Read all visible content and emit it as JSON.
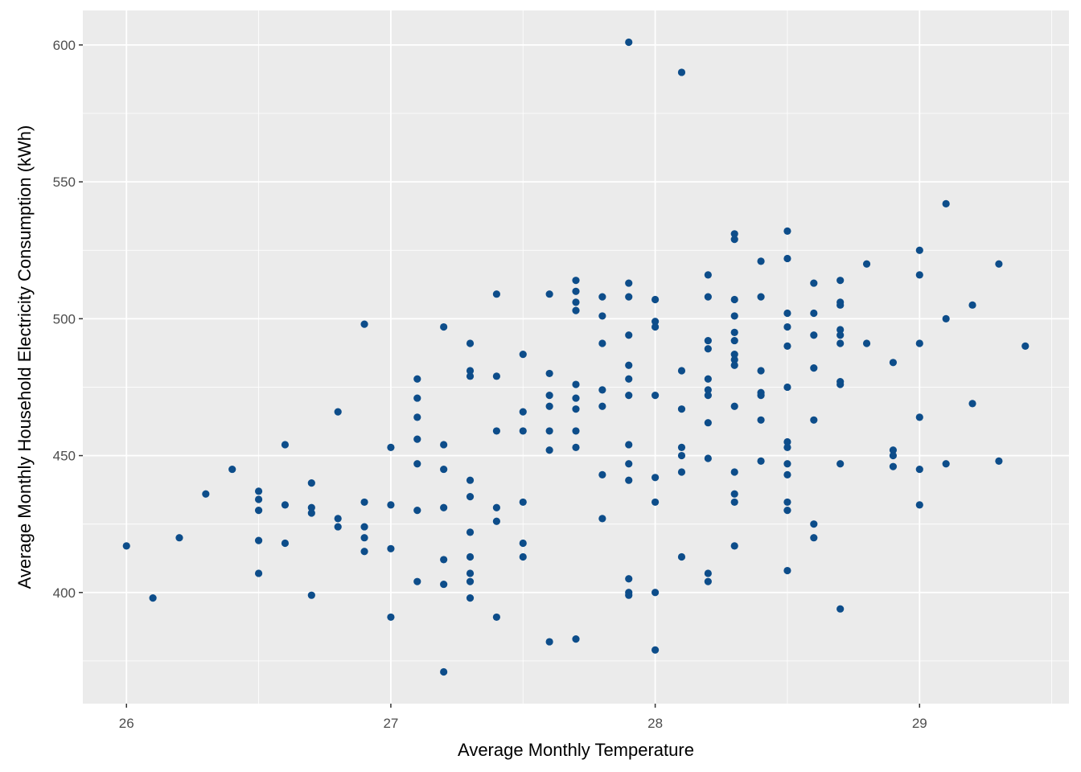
{
  "chart_data": {
    "type": "scatter",
    "title": "",
    "xlabel": "Average Monthly Temperature",
    "ylabel": "Average Monthly Household Electricity Consumption (kWh)",
    "xlim": [
      25.835,
      29.565
    ],
    "ylim": [
      359.4,
      612.6
    ],
    "x_ticks": [
      26,
      27,
      28,
      29
    ],
    "x_tick_labels": [
      "26",
      "27",
      "28",
      "29"
    ],
    "y_ticks": [
      400,
      450,
      500,
      550,
      600
    ],
    "y_tick_labels": [
      "400",
      "450",
      "500",
      "550",
      "600"
    ],
    "grid": true,
    "legend": "none",
    "colors": {
      "panel": "#ebebeb",
      "grid": "#ffffff",
      "point": "#0d4d8a",
      "tick_text": "#4d4d4d",
      "title_text": "#000000"
    },
    "points": [
      [
        26.0,
        417
      ],
      [
        26.1,
        398
      ],
      [
        26.2,
        420
      ],
      [
        26.3,
        436
      ],
      [
        26.4,
        445
      ],
      [
        26.5,
        437
      ],
      [
        26.5,
        434
      ],
      [
        26.5,
        430
      ],
      [
        26.5,
        419
      ],
      [
        26.5,
        407
      ],
      [
        26.6,
        454
      ],
      [
        26.6,
        432
      ],
      [
        26.6,
        418
      ],
      [
        26.7,
        440
      ],
      [
        26.7,
        431
      ],
      [
        26.7,
        429
      ],
      [
        26.7,
        399
      ],
      [
        26.8,
        466
      ],
      [
        26.8,
        427
      ],
      [
        26.8,
        424
      ],
      [
        26.9,
        498
      ],
      [
        26.9,
        433
      ],
      [
        26.9,
        424
      ],
      [
        26.9,
        420
      ],
      [
        26.9,
        415
      ],
      [
        27.0,
        453
      ],
      [
        27.0,
        432
      ],
      [
        27.0,
        416
      ],
      [
        27.0,
        391
      ],
      [
        27.1,
        478
      ],
      [
        27.1,
        471
      ],
      [
        27.1,
        464
      ],
      [
        27.1,
        456
      ],
      [
        27.1,
        447
      ],
      [
        27.1,
        430
      ],
      [
        27.1,
        404
      ],
      [
        27.2,
        497
      ],
      [
        27.2,
        454
      ],
      [
        27.2,
        445
      ],
      [
        27.2,
        431
      ],
      [
        27.2,
        412
      ],
      [
        27.2,
        403
      ],
      [
        27.2,
        371
      ],
      [
        27.3,
        491
      ],
      [
        27.3,
        481
      ],
      [
        27.3,
        479
      ],
      [
        27.3,
        441
      ],
      [
        27.3,
        435
      ],
      [
        27.3,
        422
      ],
      [
        27.3,
        413
      ],
      [
        27.3,
        407
      ],
      [
        27.3,
        404
      ],
      [
        27.3,
        398
      ],
      [
        27.4,
        509
      ],
      [
        27.4,
        479
      ],
      [
        27.4,
        459
      ],
      [
        27.4,
        431
      ],
      [
        27.4,
        426
      ],
      [
        27.4,
        391
      ],
      [
        27.5,
        487
      ],
      [
        27.5,
        466
      ],
      [
        27.5,
        459
      ],
      [
        27.5,
        433
      ],
      [
        27.5,
        418
      ],
      [
        27.5,
        413
      ],
      [
        27.6,
        509
      ],
      [
        27.6,
        480
      ],
      [
        27.6,
        472
      ],
      [
        27.6,
        468
      ],
      [
        27.6,
        459
      ],
      [
        27.6,
        452
      ],
      [
        27.6,
        382
      ],
      [
        27.7,
        514
      ],
      [
        27.7,
        510
      ],
      [
        27.7,
        506
      ],
      [
        27.7,
        503
      ],
      [
        27.7,
        476
      ],
      [
        27.7,
        471
      ],
      [
        27.7,
        467
      ],
      [
        27.7,
        459
      ],
      [
        27.7,
        453
      ],
      [
        27.7,
        383
      ],
      [
        27.8,
        508
      ],
      [
        27.8,
        501
      ],
      [
        27.8,
        491
      ],
      [
        27.8,
        474
      ],
      [
        27.8,
        468
      ],
      [
        27.8,
        443
      ],
      [
        27.8,
        427
      ],
      [
        27.9,
        601
      ],
      [
        27.9,
        513
      ],
      [
        27.9,
        508
      ],
      [
        27.9,
        494
      ],
      [
        27.9,
        483
      ],
      [
        27.9,
        478
      ],
      [
        27.9,
        472
      ],
      [
        27.9,
        454
      ],
      [
        27.9,
        447
      ],
      [
        27.9,
        441
      ],
      [
        27.9,
        405
      ],
      [
        27.9,
        400
      ],
      [
        27.9,
        399
      ],
      [
        28.0,
        507
      ],
      [
        28.0,
        499
      ],
      [
        28.0,
        497
      ],
      [
        28.0,
        472
      ],
      [
        28.0,
        442
      ],
      [
        28.0,
        433
      ],
      [
        28.0,
        400
      ],
      [
        28.0,
        379
      ],
      [
        28.1,
        590
      ],
      [
        28.1,
        481
      ],
      [
        28.1,
        467
      ],
      [
        28.1,
        453
      ],
      [
        28.1,
        450
      ],
      [
        28.1,
        444
      ],
      [
        28.1,
        413
      ],
      [
        28.2,
        516
      ],
      [
        28.2,
        508
      ],
      [
        28.2,
        492
      ],
      [
        28.2,
        489
      ],
      [
        28.2,
        478
      ],
      [
        28.2,
        474
      ],
      [
        28.2,
        472
      ],
      [
        28.2,
        462
      ],
      [
        28.2,
        449
      ],
      [
        28.2,
        407
      ],
      [
        28.2,
        404
      ],
      [
        28.3,
        531
      ],
      [
        28.3,
        529
      ],
      [
        28.3,
        507
      ],
      [
        28.3,
        501
      ],
      [
        28.3,
        495
      ],
      [
        28.3,
        492
      ],
      [
        28.3,
        487
      ],
      [
        28.3,
        485
      ],
      [
        28.3,
        483
      ],
      [
        28.3,
        468
      ],
      [
        28.3,
        444
      ],
      [
        28.3,
        436
      ],
      [
        28.3,
        433
      ],
      [
        28.3,
        417
      ],
      [
        28.4,
        521
      ],
      [
        28.4,
        508
      ],
      [
        28.4,
        481
      ],
      [
        28.4,
        473
      ],
      [
        28.4,
        472
      ],
      [
        28.4,
        463
      ],
      [
        28.4,
        448
      ],
      [
        28.5,
        532
      ],
      [
        28.5,
        522
      ],
      [
        28.5,
        502
      ],
      [
        28.5,
        497
      ],
      [
        28.5,
        490
      ],
      [
        28.5,
        475
      ],
      [
        28.5,
        455
      ],
      [
        28.5,
        453
      ],
      [
        28.5,
        447
      ],
      [
        28.5,
        443
      ],
      [
        28.5,
        433
      ],
      [
        28.5,
        430
      ],
      [
        28.5,
        408
      ],
      [
        28.6,
        513
      ],
      [
        28.6,
        502
      ],
      [
        28.6,
        494
      ],
      [
        28.6,
        482
      ],
      [
        28.6,
        463
      ],
      [
        28.6,
        425
      ],
      [
        28.6,
        420
      ],
      [
        28.7,
        514
      ],
      [
        28.7,
        506
      ],
      [
        28.7,
        505
      ],
      [
        28.7,
        496
      ],
      [
        28.7,
        494
      ],
      [
        28.7,
        491
      ],
      [
        28.7,
        477
      ],
      [
        28.7,
        476
      ],
      [
        28.7,
        447
      ],
      [
        28.7,
        394
      ],
      [
        28.8,
        520
      ],
      [
        28.8,
        491
      ],
      [
        28.9,
        484
      ],
      [
        28.9,
        452
      ],
      [
        28.9,
        450
      ],
      [
        28.9,
        446
      ],
      [
        29.0,
        525
      ],
      [
        29.0,
        516
      ],
      [
        29.0,
        491
      ],
      [
        29.0,
        464
      ],
      [
        29.0,
        445
      ],
      [
        29.0,
        432
      ],
      [
        29.1,
        542
      ],
      [
        29.1,
        500
      ],
      [
        29.1,
        447
      ],
      [
        29.2,
        505
      ],
      [
        29.2,
        469
      ],
      [
        29.3,
        520
      ],
      [
        29.3,
        448
      ],
      [
        29.4,
        490
      ]
    ]
  }
}
